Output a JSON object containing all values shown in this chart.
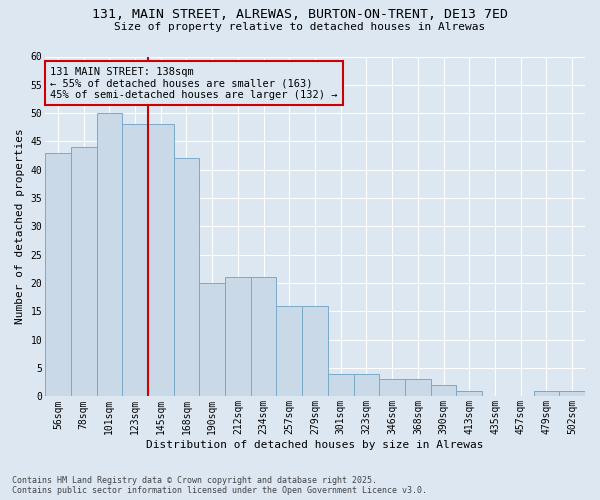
{
  "title_line1": "131, MAIN STREET, ALREWAS, BURTON-ON-TRENT, DE13 7ED",
  "title_line2": "Size of property relative to detached houses in Alrewas",
  "xlabel": "Distribution of detached houses by size in Alrewas",
  "ylabel": "Number of detached properties",
  "categories": [
    "56sqm",
    "78sqm",
    "101sqm",
    "123sqm",
    "145sqm",
    "168sqm",
    "190sqm",
    "212sqm",
    "234sqm",
    "257sqm",
    "279sqm",
    "301sqm",
    "323sqm",
    "346sqm",
    "368sqm",
    "390sqm",
    "413sqm",
    "435sqm",
    "457sqm",
    "479sqm",
    "502sqm"
  ],
  "values": [
    43,
    44,
    50,
    48,
    48,
    42,
    20,
    21,
    21,
    16,
    16,
    4,
    4,
    3,
    3,
    2,
    1,
    0,
    0,
    1,
    1
  ],
  "bar_color": "#c9d9e8",
  "bar_edge_color": "#7aaac8",
  "background_color": "#dde7f2",
  "grid_color": "#ffffff",
  "ref_line_x": 3.5,
  "ref_line_color": "#cc0000",
  "annotation_text": "131 MAIN STREET: 138sqm\n← 55% of detached houses are smaller (163)\n45% of semi-detached houses are larger (132) →",
  "annotation_box_color": "#cc0000",
  "footer_text": "Contains HM Land Registry data © Crown copyright and database right 2025.\nContains public sector information licensed under the Open Government Licence v3.0.",
  "ylim": [
    0,
    60
  ],
  "yticks": [
    0,
    5,
    10,
    15,
    20,
    25,
    30,
    35,
    40,
    45,
    50,
    55,
    60
  ],
  "title_fontsize": 9.5,
  "subtitle_fontsize": 8,
  "ylabel_fontsize": 8,
  "xlabel_fontsize": 8,
  "tick_fontsize": 7,
  "annot_fontsize": 7.5,
  "footer_fontsize": 6
}
